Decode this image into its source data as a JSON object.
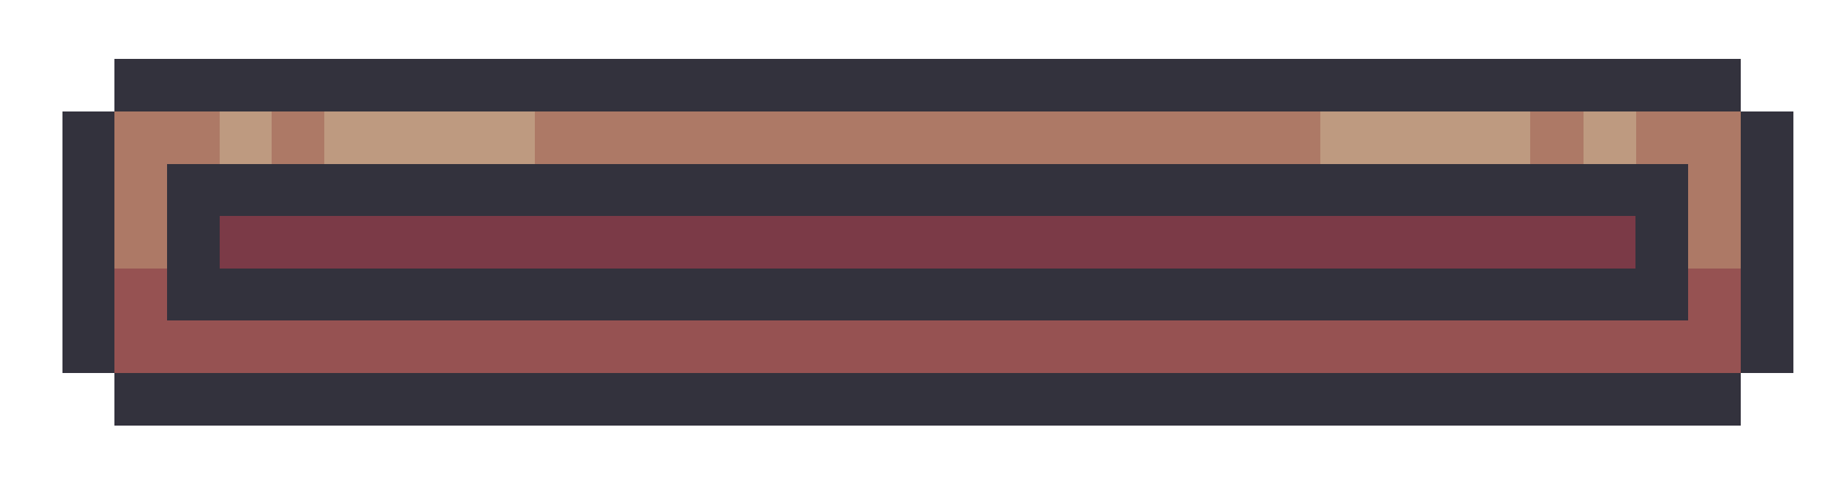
{
  "palette": {
    "background": "#ffffff",
    "outline": "#33323d",
    "frame_upper": "#ad7966",
    "frame_highlight": "#be9a80",
    "frame_lower": "#965252",
    "fill": "#7b3a47"
  },
  "progress_bar": {
    "fill_level": 1.0
  }
}
